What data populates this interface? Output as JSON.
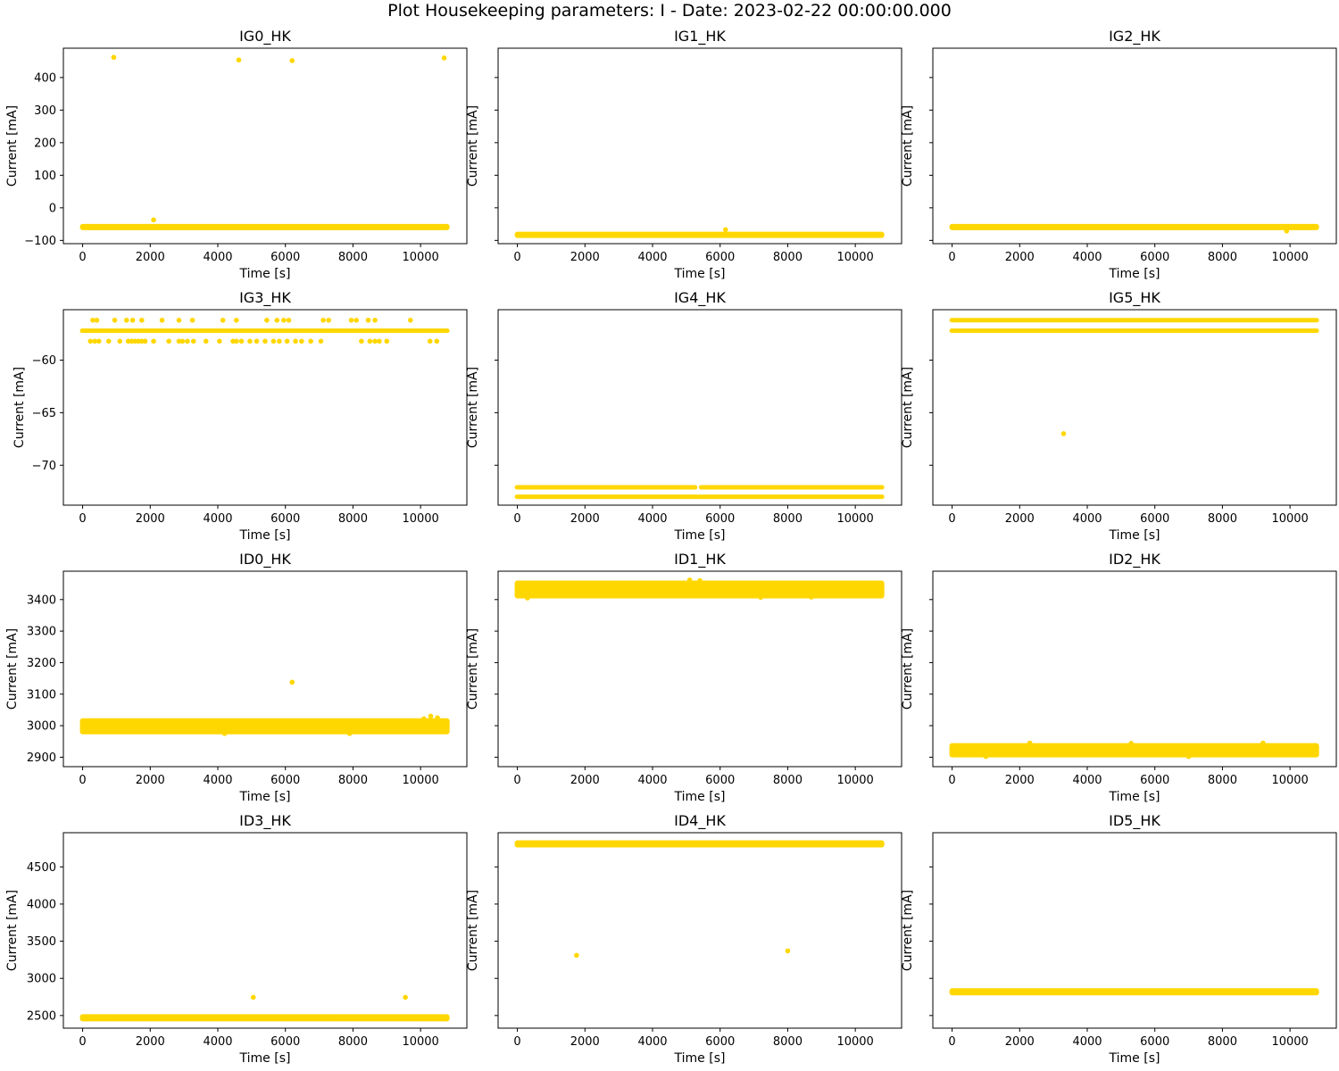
{
  "figure": {
    "title": "Plot Housekeeping parameters: I - Date: 2023-02-22 00:00:00.000",
    "marker_color": "#FFD700"
  },
  "chart_data": [
    {
      "type": "scatter",
      "title": "IG0_HK",
      "xlabel": "Time [s]",
      "ylabel": "Current [mA]",
      "xlim": [
        -570,
        11370
      ],
      "xticks": [
        0,
        2000,
        4000,
        6000,
        8000,
        10000
      ],
      "ylim": [
        -110,
        490
      ],
      "yticks": [
        -100,
        0,
        100,
        200,
        300,
        400
      ],
      "show_ytick_labels": true,
      "bands": [
        {
          "y": -59,
          "x": [
            0,
            10780
          ],
          "thickness": 7
        }
      ],
      "points": [
        [
          920,
          462
        ],
        [
          4620,
          454
        ],
        [
          6200,
          452
        ],
        [
          10700,
          460
        ],
        [
          2100,
          -37
        ]
      ]
    },
    {
      "type": "scatter",
      "title": "IG1_HK",
      "xlabel": "Time [s]",
      "ylabel": "Current [mA]",
      "xlim": [
        -570,
        11370
      ],
      "xticks": [
        0,
        2000,
        4000,
        6000,
        8000,
        10000
      ],
      "ylim": [
        -110,
        490
      ],
      "yticks": [
        -100,
        0,
        100,
        200,
        300,
        400
      ],
      "show_ytick_labels": false,
      "bands": [
        {
          "y": -83,
          "x": [
            0,
            10780
          ],
          "thickness": 7
        }
      ],
      "points": [
        [
          6160,
          -67
        ]
      ]
    },
    {
      "type": "scatter",
      "title": "IG2_HK",
      "xlabel": "Time [s]",
      "ylabel": "Current [mA]",
      "xlim": [
        -570,
        11370
      ],
      "xticks": [
        0,
        2000,
        4000,
        6000,
        8000,
        10000
      ],
      "ylim": [
        -110,
        490
      ],
      "yticks": [
        -100,
        0,
        100,
        200,
        300,
        400
      ],
      "show_ytick_labels": false,
      "bands": [
        {
          "y": -59,
          "x": [
            0,
            10780
          ],
          "thickness": 7
        }
      ],
      "points": [
        [
          9900,
          -71
        ]
      ]
    },
    {
      "type": "scatter",
      "title": "IG3_HK",
      "xlabel": "Time [s]",
      "ylabel": "Current [mA]",
      "xlim": [
        -570,
        11370
      ],
      "xticks": [
        0,
        2000,
        4000,
        6000,
        8000,
        10000
      ],
      "ylim": [
        -73.8,
        -55.2
      ],
      "yticks": [
        -70,
        -65,
        -60
      ],
      "show_ytick_labels": true,
      "bands": [
        {
          "y": -57.2,
          "x": [
            0,
            10780
          ],
          "thickness": 5
        }
      ],
      "points": [
        [
          300,
          -56.2
        ],
        [
          420,
          -56.2
        ],
        [
          950,
          -56.2
        ],
        [
          1300,
          -56.2
        ],
        [
          1480,
          -56.2
        ],
        [
          1750,
          -56.2
        ],
        [
          2350,
          -56.2
        ],
        [
          2850,
          -56.2
        ],
        [
          3250,
          -56.2
        ],
        [
          4150,
          -56.2
        ],
        [
          4550,
          -56.2
        ],
        [
          5450,
          -56.2
        ],
        [
          5750,
          -56.2
        ],
        [
          5950,
          -56.2
        ],
        [
          6100,
          -56.2
        ],
        [
          7120,
          -56.2
        ],
        [
          7280,
          -56.2
        ],
        [
          7950,
          -56.2
        ],
        [
          8100,
          -56.2
        ],
        [
          8450,
          -56.2
        ],
        [
          8650,
          -56.2
        ],
        [
          9700,
          -56.2
        ],
        [
          230,
          -58.2
        ],
        [
          360,
          -58.2
        ],
        [
          480,
          -58.2
        ],
        [
          770,
          -58.2
        ],
        [
          1100,
          -58.2
        ],
        [
          1350,
          -58.2
        ],
        [
          1450,
          -58.2
        ],
        [
          1550,
          -58.2
        ],
        [
          1650,
          -58.2
        ],
        [
          1750,
          -58.2
        ],
        [
          1850,
          -58.2
        ],
        [
          2100,
          -58.2
        ],
        [
          2550,
          -58.2
        ],
        [
          2850,
          -58.2
        ],
        [
          2950,
          -58.2
        ],
        [
          3100,
          -58.2
        ],
        [
          3280,
          -58.2
        ],
        [
          3650,
          -58.2
        ],
        [
          4050,
          -58.2
        ],
        [
          4450,
          -58.2
        ],
        [
          4550,
          -58.2
        ],
        [
          4700,
          -58.2
        ],
        [
          4950,
          -58.2
        ],
        [
          5150,
          -58.2
        ],
        [
          5400,
          -58.2
        ],
        [
          5650,
          -58.2
        ],
        [
          5820,
          -58.2
        ],
        [
          6050,
          -58.2
        ],
        [
          6300,
          -58.2
        ],
        [
          6480,
          -58.2
        ],
        [
          6750,
          -58.2
        ],
        [
          7050,
          -58.2
        ],
        [
          8250,
          -58.2
        ],
        [
          8500,
          -58.2
        ],
        [
          8650,
          -58.2
        ],
        [
          8780,
          -58.2
        ],
        [
          9000,
          -58.2
        ],
        [
          10280,
          -58.2
        ],
        [
          10480,
          -58.2
        ]
      ]
    },
    {
      "type": "scatter",
      "title": "IG4_HK",
      "xlabel": "Time [s]",
      "ylabel": "Current [mA]",
      "xlim": [
        -570,
        11370
      ],
      "xticks": [
        0,
        2000,
        4000,
        6000,
        8000,
        10000
      ],
      "ylim": [
        -73.8,
        -55.2
      ],
      "yticks": [
        -70,
        -65,
        -60
      ],
      "show_ytick_labels": false,
      "bands": [
        {
          "y": -73.0,
          "x": [
            0,
            10780
          ],
          "thickness": 5
        },
        {
          "y": -72.1,
          "x": [
            0,
            5250
          ],
          "thickness": 5
        },
        {
          "y": -72.1,
          "x": [
            5450,
            10780
          ],
          "thickness": 5
        }
      ],
      "points": []
    },
    {
      "type": "scatter",
      "title": "IG5_HK",
      "xlabel": "Time [s]",
      "ylabel": "Current [mA]",
      "xlim": [
        -570,
        11370
      ],
      "xticks": [
        0,
        2000,
        4000,
        6000,
        8000,
        10000
      ],
      "ylim": [
        -73.8,
        -55.2
      ],
      "yticks": [
        -70,
        -65,
        -60
      ],
      "show_ytick_labels": false,
      "bands": [
        {
          "y": -56.2,
          "x": [
            0,
            10780
          ],
          "thickness": 5
        },
        {
          "y": -57.2,
          "x": [
            0,
            10780
          ],
          "thickness": 5
        }
      ],
      "points": [
        [
          3300,
          -67.0
        ]
      ]
    },
    {
      "type": "scatter",
      "title": "ID0_HK",
      "xlabel": "Time [s]",
      "ylabel": "Current [mA]",
      "xlim": [
        -570,
        11370
      ],
      "xticks": [
        0,
        2000,
        4000,
        6000,
        8000,
        10000
      ],
      "ylim": [
        2870,
        3490
      ],
      "yticks": [
        2900,
        3000,
        3100,
        3200,
        3300,
        3400
      ],
      "show_ytick_labels": true,
      "bands": [
        {
          "y": 2998,
          "x": [
            0,
            10780
          ],
          "thickness": 18
        }
      ],
      "points": [
        [
          6200,
          3138
        ],
        [
          10300,
          3030
        ],
        [
          10500,
          3025
        ],
        [
          10100,
          3022
        ],
        [
          7900,
          2975
        ],
        [
          4200,
          2975
        ]
      ]
    },
    {
      "type": "scatter",
      "title": "ID1_HK",
      "xlabel": "Time [s]",
      "ylabel": "Current [mA]",
      "xlim": [
        -570,
        11370
      ],
      "xticks": [
        0,
        2000,
        4000,
        6000,
        8000,
        10000
      ],
      "ylim": [
        2870,
        3490
      ],
      "yticks": [
        2900,
        3000,
        3100,
        3200,
        3300,
        3400
      ],
      "show_ytick_labels": false,
      "bands": [
        {
          "y": 3432,
          "x": [
            0,
            10780
          ],
          "thickness": 20
        }
      ],
      "points": [
        [
          5100,
          3462
        ],
        [
          5400,
          3460
        ],
        [
          300,
          3405
        ],
        [
          7200,
          3407
        ],
        [
          8700,
          3408
        ]
      ]
    },
    {
      "type": "scatter",
      "title": "ID2_HK",
      "xlabel": "Time [s]",
      "ylabel": "Current [mA]",
      "xlim": [
        -570,
        11370
      ],
      "xticks": [
        0,
        2000,
        4000,
        6000,
        8000,
        10000
      ],
      "ylim": [
        2870,
        3490
      ],
      "yticks": [
        2900,
        3000,
        3100,
        3200,
        3300,
        3400
      ],
      "show_ytick_labels": false,
      "bands": [
        {
          "y": 2922,
          "x": [
            0,
            10780
          ],
          "thickness": 16
        }
      ],
      "points": [
        [
          2300,
          2945
        ],
        [
          5300,
          2944
        ],
        [
          9200,
          2945
        ],
        [
          1000,
          2902
        ],
        [
          7000,
          2902
        ]
      ]
    },
    {
      "type": "scatter",
      "title": "ID3_HK",
      "xlabel": "Time [s]",
      "ylabel": "Current [mA]",
      "xlim": [
        -570,
        11370
      ],
      "xticks": [
        0,
        2000,
        4000,
        6000,
        8000,
        10000
      ],
      "ylim": [
        2330,
        4960
      ],
      "yticks": [
        2500,
        3000,
        3500,
        4000,
        4500
      ],
      "show_ytick_labels": true,
      "bands": [
        {
          "y": 2470,
          "x": [
            0,
            10780
          ],
          "thickness": 8
        }
      ],
      "points": [
        [
          5050,
          2745
        ],
        [
          9550,
          2745
        ]
      ]
    },
    {
      "type": "scatter",
      "title": "ID4_HK",
      "xlabel": "Time [s]",
      "ylabel": "Current [mA]",
      "xlim": [
        -570,
        11370
      ],
      "xticks": [
        0,
        2000,
        4000,
        6000,
        8000,
        10000
      ],
      "ylim": [
        2330,
        4960
      ],
      "yticks": [
        2500,
        3000,
        3500,
        4000,
        4500
      ],
      "show_ytick_labels": false,
      "bands": [
        {
          "y": 4810,
          "x": [
            0,
            10780
          ],
          "thickness": 8
        }
      ],
      "points": [
        [
          1750,
          3310
        ],
        [
          8000,
          3370
        ]
      ]
    },
    {
      "type": "scatter",
      "title": "ID5_HK",
      "xlabel": "Time [s]",
      "ylabel": "Current [mA]",
      "xlim": [
        -570,
        11370
      ],
      "xticks": [
        0,
        2000,
        4000,
        6000,
        8000,
        10000
      ],
      "ylim": [
        2330,
        4960
      ],
      "yticks": [
        2500,
        3000,
        3500,
        4000,
        4500
      ],
      "show_ytick_labels": false,
      "bands": [
        {
          "y": 2820,
          "x": [
            0,
            10780
          ],
          "thickness": 8
        }
      ],
      "points": []
    }
  ]
}
